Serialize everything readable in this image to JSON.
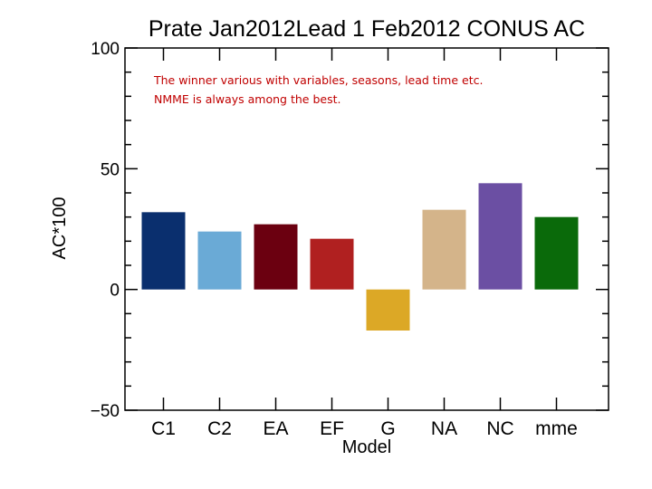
{
  "chart_data": {
    "type": "bar",
    "title": "Prate Jan2012Lead 1 Feb2012 CONUS AC",
    "xlabel": "Model",
    "ylabel": "AC*100",
    "categories": [
      "C1",
      "C2",
      "EA",
      "EF",
      "G",
      "NA",
      "NC",
      "mme"
    ],
    "values": [
      32,
      24,
      27,
      21,
      -17,
      33,
      44,
      30
    ],
    "colors": [
      "#0a2f6e",
      "#6aaad6",
      "#6b0010",
      "#b02020",
      "#dca826",
      "#d4b48a",
      "#6b4fa3",
      "#0a6a0a"
    ],
    "ylim": [
      -50,
      100
    ],
    "yticks": [
      -50,
      0,
      50,
      100
    ],
    "ytick_labels": [
      "−50",
      "0",
      "50",
      "100"
    ],
    "grid": false,
    "annotation": "The winner various with variables, seasons, lead time etc.  NMME is always among the best."
  }
}
